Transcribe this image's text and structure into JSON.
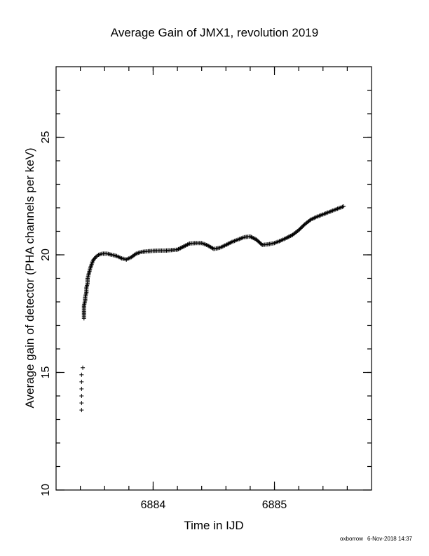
{
  "chart_data": {
    "type": "scatter",
    "title": "Average Gain of JMX1, revolution 2019",
    "xlabel": "Time in IJD",
    "ylabel": "Average gain of detector (PHA channels per keV)",
    "xlim": [
      6883.2,
      6885.8
    ],
    "ylim": [
      10,
      28
    ],
    "x_major_ticks": [
      6884,
      6885
    ],
    "x_major_tick_labels": [
      "6884",
      "6885"
    ],
    "x_minor_step": 0.2,
    "y_major_ticks": [
      10,
      15,
      20,
      25
    ],
    "y_major_tick_labels": [
      "10",
      "15",
      "20",
      "25"
    ],
    "y_minor_step": 1,
    "grid": false,
    "marker": "plus",
    "series": [
      {
        "points": [
          [
            6883.41,
            13.4
          ],
          [
            6883.41,
            13.7
          ],
          [
            6883.41,
            14.0
          ],
          [
            6883.41,
            14.3
          ],
          [
            6883.41,
            14.6
          ],
          [
            6883.41,
            14.9
          ],
          [
            6883.42,
            15.2
          ],
          [
            6883.43,
            17.3
          ],
          [
            6883.43,
            17.85
          ],
          [
            6883.44,
            18.05
          ],
          [
            6883.44,
            18.2
          ],
          [
            6883.45,
            18.4
          ],
          [
            6883.45,
            18.6
          ],
          [
            6883.46,
            18.8
          ],
          [
            6883.46,
            19.0
          ],
          [
            6883.47,
            19.2
          ],
          [
            6883.48,
            19.4
          ],
          [
            6883.49,
            19.55
          ],
          [
            6883.5,
            19.7
          ],
          [
            6883.51,
            19.8
          ],
          [
            6883.53,
            19.92
          ],
          [
            6883.55,
            20.0
          ],
          [
            6883.58,
            20.05
          ],
          [
            6883.62,
            20.05
          ],
          [
            6883.66,
            20.0
          ],
          [
            6883.7,
            19.95
          ],
          [
            6883.74,
            19.85
          ],
          [
            6883.78,
            19.8
          ],
          [
            6883.82,
            19.9
          ],
          [
            6883.86,
            20.05
          ],
          [
            6883.9,
            20.12
          ],
          [
            6883.95,
            20.15
          ],
          [
            6884.0,
            20.17
          ],
          [
            6884.05,
            20.18
          ],
          [
            6884.1,
            20.18
          ],
          [
            6884.15,
            20.2
          ],
          [
            6884.2,
            20.22
          ],
          [
            6884.25,
            20.35
          ],
          [
            6884.3,
            20.48
          ],
          [
            6884.35,
            20.5
          ],
          [
            6884.4,
            20.5
          ],
          [
            6884.45,
            20.4
          ],
          [
            6884.5,
            20.25
          ],
          [
            6884.55,
            20.3
          ],
          [
            6884.6,
            20.42
          ],
          [
            6884.65,
            20.55
          ],
          [
            6884.7,
            20.65
          ],
          [
            6884.75,
            20.75
          ],
          [
            6884.8,
            20.78
          ],
          [
            6884.85,
            20.65
          ],
          [
            6884.9,
            20.42
          ],
          [
            6884.95,
            20.45
          ],
          [
            6885.0,
            20.5
          ],
          [
            6885.05,
            20.6
          ],
          [
            6885.1,
            20.72
          ],
          [
            6885.15,
            20.85
          ],
          [
            6885.2,
            21.05
          ],
          [
            6885.25,
            21.3
          ],
          [
            6885.3,
            21.5
          ],
          [
            6885.35,
            21.62
          ],
          [
            6885.4,
            21.72
          ],
          [
            6885.45,
            21.82
          ],
          [
            6885.5,
            21.92
          ],
          [
            6885.55,
            22.02
          ],
          [
            6885.57,
            22.06
          ]
        ]
      }
    ]
  },
  "footer": {
    "user": "oxborrow",
    "timestamp": "6-Nov-2018 14:37"
  }
}
